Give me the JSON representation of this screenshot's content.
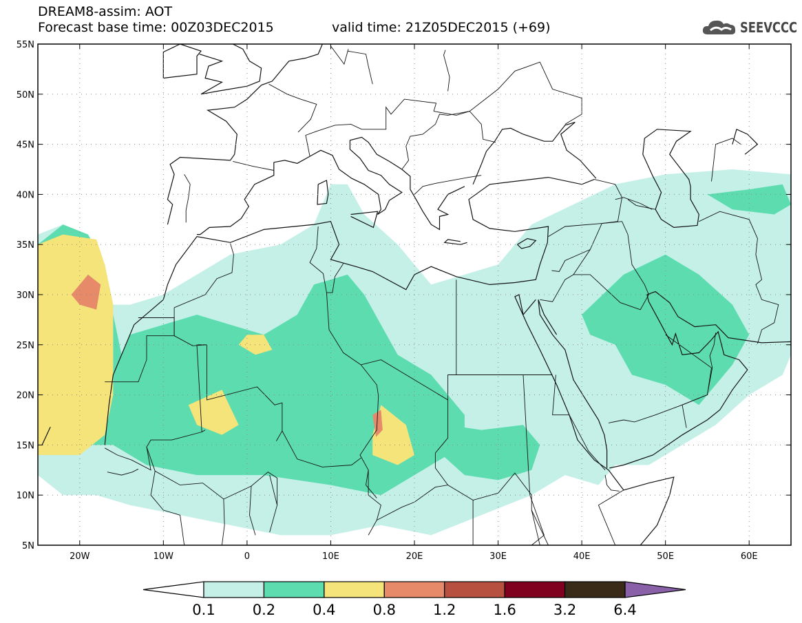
{
  "header": {
    "title": "DREAM8-assim: AOT",
    "base_time": "Forecast base time: 00Z03DEC2015",
    "valid_time": "valid time: 21Z05DEC2015 (+69)",
    "logo_text": "SEEVCCC",
    "logo_icon": "cloud-logo-icon"
  },
  "map": {
    "lon_range": [
      -25,
      65
    ],
    "lat_range": [
      5,
      55
    ],
    "lat_ticks": [
      {
        "lat": 55,
        "label": "55N"
      },
      {
        "lat": 50,
        "label": "50N"
      },
      {
        "lat": 45,
        "label": "45N"
      },
      {
        "lat": 40,
        "label": "40N"
      },
      {
        "lat": 35,
        "label": "35N"
      },
      {
        "lat": 30,
        "label": "30N"
      },
      {
        "lat": 25,
        "label": "25N"
      },
      {
        "lat": 20,
        "label": "20N"
      },
      {
        "lat": 15,
        "label": "15N"
      },
      {
        "lat": 10,
        "label": "10N"
      },
      {
        "lat": 5,
        "label": "5N"
      }
    ],
    "lon_ticks": [
      {
        "lon": -20,
        "label": "20W"
      },
      {
        "lon": -10,
        "label": "10W"
      },
      {
        "lon": 0,
        "label": "0"
      },
      {
        "lon": 10,
        "label": "10E"
      },
      {
        "lon": 20,
        "label": "20E"
      },
      {
        "lon": 30,
        "label": "30E"
      },
      {
        "lon": 40,
        "label": "40E"
      },
      {
        "lon": 50,
        "label": "50E"
      },
      {
        "lon": 60,
        "label": "60E"
      }
    ],
    "grid": true
  },
  "colorbar": {
    "levels": [
      "0.1",
      "0.2",
      "0.4",
      "0.8",
      "1.2",
      "1.6",
      "3.2",
      "6.4"
    ],
    "colors": [
      "#ffffff",
      "#c4f0e8",
      "#5ddcb0",
      "#f5e47a",
      "#e68a6a",
      "#b85040",
      "#800020",
      "#3a2a18",
      "#8a60a8"
    ]
  },
  "chart_data": {
    "type": "heatmap",
    "variable": "AOT",
    "levels": [
      0.1,
      0.2,
      0.4,
      0.8,
      1.2,
      1.6,
      3.2,
      6.4
    ],
    "xlim": [
      -25,
      65
    ],
    "ylim": [
      5,
      55
    ],
    "regions": [
      {
        "level": 0.1,
        "outline": [
          [
            -25,
            12
          ],
          [
            -22,
            10
          ],
          [
            -18,
            10
          ],
          [
            -14,
            9
          ],
          [
            -8,
            8
          ],
          [
            -2,
            7
          ],
          [
            4,
            6
          ],
          [
            10,
            6
          ],
          [
            16,
            7
          ],
          [
            22,
            6
          ],
          [
            28,
            8
          ],
          [
            34,
            10
          ],
          [
            38,
            12
          ],
          [
            42,
            11
          ],
          [
            44,
            13
          ],
          [
            48,
            13
          ],
          [
            52,
            15
          ],
          [
            56,
            17
          ],
          [
            60,
            20
          ],
          [
            64,
            22
          ],
          [
            65,
            24
          ],
          [
            65,
            42
          ],
          [
            58,
            42.5
          ],
          [
            50,
            42
          ],
          [
            44,
            41
          ],
          [
            39,
            39
          ],
          [
            34,
            37
          ],
          [
            30,
            33
          ],
          [
            26,
            32
          ],
          [
            22,
            31
          ],
          [
            18,
            35
          ],
          [
            14,
            38
          ],
          [
            12,
            41
          ],
          [
            10,
            41
          ],
          [
            8,
            37
          ],
          [
            4,
            35
          ],
          [
            -2,
            34
          ],
          [
            -6,
            32
          ],
          [
            -10,
            30
          ],
          [
            -14,
            29
          ],
          [
            -16,
            29
          ],
          [
            -17,
            33
          ],
          [
            -19,
            36
          ],
          [
            -22,
            37
          ],
          [
            -25,
            36
          ]
        ]
      },
      {
        "level": 0.2,
        "outline": [
          [
            -25,
            17
          ],
          [
            -22,
            15
          ],
          [
            -16,
            15
          ],
          [
            -12,
            13
          ],
          [
            -6,
            12
          ],
          [
            2,
            12
          ],
          [
            10,
            11
          ],
          [
            16,
            10
          ],
          [
            20,
            12
          ],
          [
            24,
            14
          ],
          [
            26,
            12
          ],
          [
            26,
            18
          ],
          [
            22,
            22
          ],
          [
            18,
            24
          ],
          [
            16,
            27
          ],
          [
            14,
            30
          ],
          [
            12,
            32
          ],
          [
            8,
            31
          ],
          [
            6,
            28
          ],
          [
            2,
            26
          ],
          [
            -2,
            27
          ],
          [
            -6,
            28
          ],
          [
            -10,
            27
          ],
          [
            -14,
            26
          ],
          [
            -15,
            24
          ],
          [
            -16,
            28
          ],
          [
            -17,
            33
          ],
          [
            -19,
            36
          ],
          [
            -22,
            37
          ],
          [
            -25,
            35
          ]
        ]
      },
      {
        "level": 0.2,
        "outline": [
          [
            22,
            15
          ],
          [
            26,
            12
          ],
          [
            30,
            11.5
          ],
          [
            34,
            12.5
          ],
          [
            35,
            15
          ],
          [
            33,
            17
          ],
          [
            28,
            16.5
          ],
          [
            24,
            17
          ]
        ]
      },
      {
        "level": 0.2,
        "outline": [
          [
            40,
            28
          ],
          [
            45,
            32
          ],
          [
            50,
            34
          ],
          [
            54,
            32
          ],
          [
            58,
            29
          ],
          [
            60,
            26
          ],
          [
            58,
            23
          ],
          [
            54,
            19
          ],
          [
            50,
            21
          ],
          [
            46,
            22
          ],
          [
            44,
            25
          ],
          [
            41,
            26
          ]
        ]
      },
      {
        "level": 0.2,
        "outline": [
          [
            55,
            40
          ],
          [
            60,
            40.5
          ],
          [
            64,
            41
          ],
          [
            65,
            39
          ],
          [
            63,
            38
          ],
          [
            58,
            38.5
          ]
        ]
      },
      {
        "level": 0.4,
        "outline": [
          [
            -25,
            35
          ],
          [
            -22,
            36
          ],
          [
            -18,
            35.5
          ],
          [
            -17,
            33
          ],
          [
            -16,
            29
          ],
          [
            -16,
            24
          ],
          [
            -16,
            20
          ],
          [
            -17,
            16
          ],
          [
            -20,
            14
          ],
          [
            -25,
            14
          ]
        ]
      },
      {
        "level": 0.4,
        "outline": [
          [
            -7,
            19
          ],
          [
            -3,
            20.5
          ],
          [
            -1,
            17
          ],
          [
            -3,
            16
          ],
          [
            -6,
            17
          ]
        ]
      },
      {
        "level": 0.4,
        "outline": [
          [
            15,
            16
          ],
          [
            16,
            19
          ],
          [
            19,
            17
          ],
          [
            20,
            14
          ],
          [
            18,
            13
          ],
          [
            15,
            14
          ]
        ]
      },
      {
        "level": 0.4,
        "outline": [
          [
            0,
            26
          ],
          [
            2,
            26
          ],
          [
            3,
            24.5
          ],
          [
            1,
            24
          ],
          [
            -1,
            25
          ]
        ]
      },
      {
        "level": 0.8,
        "outline": [
          [
            -21,
            30
          ],
          [
            -19,
            32
          ],
          [
            -17.5,
            31
          ],
          [
            -18,
            28.5
          ],
          [
            -20,
            29
          ]
        ]
      },
      {
        "level": 0.8,
        "outline": [
          [
            15,
            18
          ],
          [
            16,
            18.5
          ],
          [
            16.2,
            16.5
          ],
          [
            15.4,
            15.8
          ]
        ]
      }
    ]
  }
}
